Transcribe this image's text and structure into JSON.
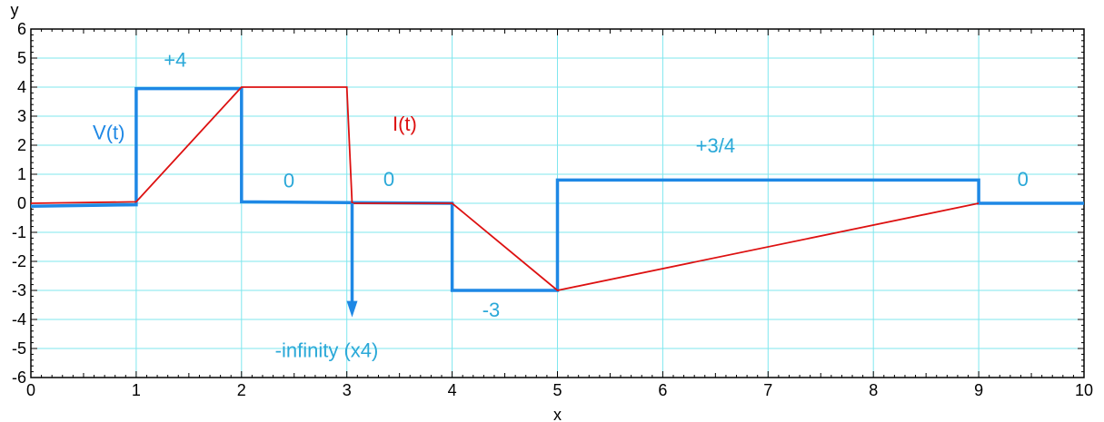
{
  "chart_data": {
    "type": "line",
    "xlabel": "x",
    "ylabel": "y",
    "xlim": [
      0,
      10
    ],
    "ylim": [
      -6,
      6
    ],
    "x_ticks": [
      0,
      1,
      2,
      3,
      4,
      5,
      6,
      7,
      8,
      9,
      10
    ],
    "y_ticks": [
      -6,
      -5,
      -4,
      -3,
      -2,
      -1,
      0,
      1,
      2,
      3,
      4,
      5,
      6
    ],
    "grid": true,
    "colors": {
      "grid": "#7fe7ee",
      "voltage": "#1e88e5",
      "current": "#dd1111",
      "annotation": "#2aa8d8"
    },
    "series": [
      {
        "name": "V(t)",
        "points": [
          [
            0,
            -0.1
          ],
          [
            1,
            -0.05
          ],
          [
            1,
            3.95
          ],
          [
            2,
            3.95
          ],
          [
            2,
            0.05
          ],
          [
            4,
            0
          ],
          [
            4,
            -3
          ],
          [
            5,
            -3
          ],
          [
            5,
            0.8
          ],
          [
            9,
            0.8
          ],
          [
            9,
            0
          ],
          [
            10,
            0
          ]
        ]
      },
      {
        "name": "I(t)",
        "points": [
          [
            0,
            0
          ],
          [
            1,
            0.05
          ],
          [
            2,
            4
          ],
          [
            3,
            4
          ],
          [
            3.05,
            0
          ],
          [
            4,
            0
          ],
          [
            5,
            -3
          ],
          [
            9,
            0
          ]
        ]
      }
    ],
    "impulse": {
      "x": 3.05,
      "y_from": 0,
      "y_to": -3.8,
      "label": "-infinity (x4)"
    },
    "annotations": [
      {
        "text": "+4",
        "x": 1.37,
        "y": 4.7,
        "color": "annotation"
      },
      {
        "text": "V(t)",
        "x": 0.74,
        "y": 2.2,
        "color": "voltage"
      },
      {
        "text": "0",
        "x": 2.45,
        "y": 0.55,
        "color": "annotation"
      },
      {
        "text": "I(t)",
        "x": 3.55,
        "y": 2.5,
        "color": "current"
      },
      {
        "text": "0",
        "x": 3.4,
        "y": 0.6,
        "color": "annotation"
      },
      {
        "text": "-3",
        "x": 4.37,
        "y": -3.9,
        "color": "annotation"
      },
      {
        "text": "+3/4",
        "x": 6.5,
        "y": 1.75,
        "color": "annotation"
      },
      {
        "text": "0",
        "x": 9.42,
        "y": 0.6,
        "color": "annotation"
      }
    ]
  }
}
